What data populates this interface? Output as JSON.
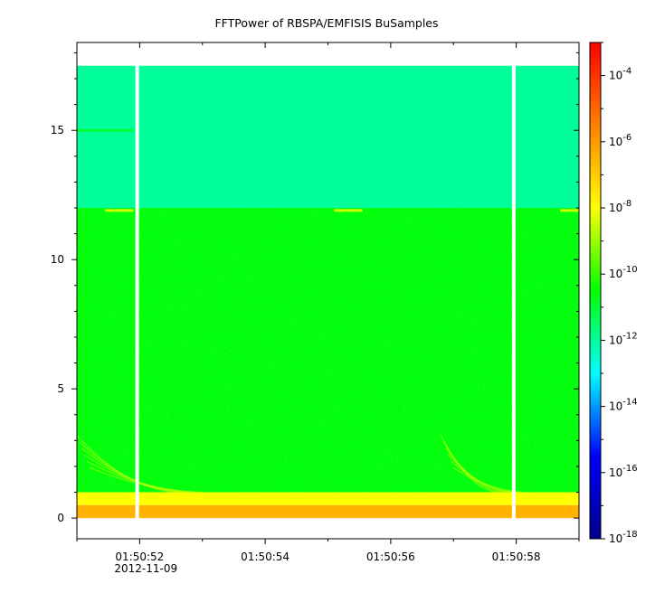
{
  "chart_data": {
    "type": "heatmap",
    "title": "FFTPower of RBSPA/EMFISIS  BuSamples",
    "xlabel": "",
    "ylabel": "",
    "x_ticks": [
      {
        "label": "01:50:52",
        "sublabel": "2012-11-09",
        "value": 52
      },
      {
        "label": "01:50:54",
        "sublabel": "",
        "value": 54
      },
      {
        "label": "01:50:56",
        "sublabel": "",
        "value": 56
      },
      {
        "label": "01:50:58",
        "sublabel": "",
        "value": 58
      }
    ],
    "x_minor_ticks": [
      51,
      53,
      55,
      57,
      59
    ],
    "xlim": [
      51.0,
      59.0
    ],
    "y_ticks": [
      0,
      5,
      10,
      15
    ],
    "ylim": [
      -0.8,
      18.4
    ],
    "colorbar": {
      "scale": "log",
      "range": [
        1e-18,
        0.001
      ],
      "ticks": [
        {
          "base": "10",
          "exp": "-4",
          "value": -4
        },
        {
          "base": "10",
          "exp": "-6",
          "value": -6
        },
        {
          "base": "10",
          "exp": "-8",
          "value": -8
        },
        {
          "base": "10",
          "exp": "-10",
          "value": -10
        },
        {
          "base": "10",
          "exp": "-12",
          "value": -12
        },
        {
          "base": "10",
          "exp": "-14",
          "value": -14
        },
        {
          "base": "10",
          "exp": "-16",
          "value": -16
        },
        {
          "base": "10",
          "exp": "-18",
          "value": -18
        }
      ],
      "colors": [
        "#00008b",
        "#0000ff",
        "#00ffff",
        "#00ff00",
        "#ffff00",
        "#ff8000",
        "#ff0000"
      ]
    },
    "data_extent": {
      "x": [
        51.0,
        59.0
      ],
      "y": [
        0.0,
        17.5
      ]
    },
    "gaps": [
      51.96,
      57.96
    ],
    "bands": [
      {
        "y_range": [
          12.0,
          17.5
        ],
        "log_power": -12.0
      },
      {
        "y_range": [
          1.0,
          12.0
        ],
        "log_power": -10.6
      },
      {
        "y_range": [
          0.5,
          1.0
        ],
        "log_power": -8.0
      },
      {
        "y_range": [
          0.0,
          0.5
        ],
        "log_power": -6.5
      }
    ],
    "lines": [
      {
        "y": 11.9,
        "x_range": [
          51.45,
          51.9
        ],
        "log_power": -8.5
      },
      {
        "y": 11.9,
        "x_range": [
          55.1,
          55.55
        ],
        "log_power": -8.5
      },
      {
        "y": 11.9,
        "x_range": [
          58.7,
          59.0
        ],
        "log_power": -8.5
      },
      {
        "y": 15.0,
        "x_range": [
          51.0,
          51.9
        ],
        "log_power": -11.0
      }
    ]
  }
}
